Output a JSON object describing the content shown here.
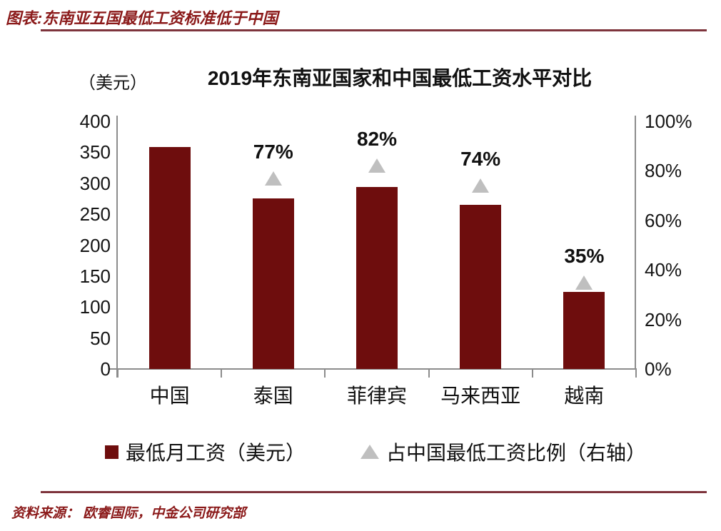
{
  "header": {
    "title": "图表:东南亚五国最低工资标准低于中国"
  },
  "chart": {
    "unit_label": "（美元）",
    "title": "2019年东南亚国家和中国最低工资水平对比",
    "legend": [
      {
        "marker": "square-icon",
        "label": "最低月工资（美元）",
        "color": "#6E0D0D"
      },
      {
        "marker": "triangle-icon",
        "label": "占中国最低工资比例（右轴）",
        "color": "#BFBFBF"
      }
    ]
  },
  "chart_data": {
    "type": "bar",
    "title": "2019年东南亚国家和中国最低工资水平对比",
    "categories": [
      "中国",
      "泰国",
      "菲律宾",
      "马来西亚",
      "越南"
    ],
    "series": [
      {
        "name": "最低月工资（美元）",
        "type": "bar",
        "axis": "left",
        "color": "#6E0D0D",
        "values": [
          358,
          276,
          294,
          265,
          125
        ]
      },
      {
        "name": "占中国最低工资比例（右轴）",
        "type": "scatter",
        "marker": "triangle",
        "axis": "right",
        "color": "#BFBFBF",
        "values": [
          null,
          77,
          82,
          74,
          35
        ],
        "labels": [
          "",
          "77%",
          "82%",
          "74%",
          "35%"
        ]
      }
    ],
    "left_axis": {
      "unit": "（美元）",
      "min": 0,
      "max": 400,
      "ticks": [
        400,
        350,
        300,
        250,
        200,
        150,
        100,
        50,
        0
      ]
    },
    "right_axis": {
      "min": 0,
      "max": 100,
      "ticks": [
        100,
        80,
        60,
        40,
        20,
        0
      ],
      "tick_suffix": "%"
    },
    "grid": false,
    "legend_position": "bottom",
    "colors": {
      "bar": "#6E0D0D",
      "marker": "#BFBFBF",
      "axis_line": "#8C8C8C",
      "accent_red": "#8B1A1A",
      "rule": "#7E343C"
    }
  },
  "footer": {
    "source": "资料来源： 欧睿国际，中金公司研究部"
  }
}
